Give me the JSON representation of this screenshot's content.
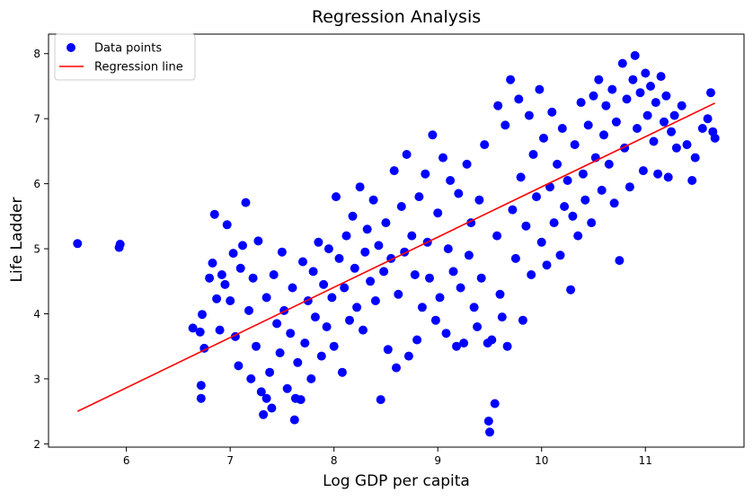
{
  "chart_data": {
    "type": "scatter",
    "title": "Regression Analysis",
    "xlabel": "Log GDP per capita",
    "ylabel": "Life Ladder",
    "xlim": [
      5.25,
      11.95
    ],
    "ylim": [
      1.95,
      8.3
    ],
    "xticks": [
      6,
      7,
      8,
      9,
      10,
      11
    ],
    "yticks": [
      2,
      3,
      4,
      5,
      6,
      7,
      8
    ],
    "grid": false,
    "legend_position": "top-left",
    "legend": [
      {
        "label": "Data points",
        "marker": "circle",
        "color": "#0000ff"
      },
      {
        "label": "Regression line",
        "marker": "line",
        "color": "#ff0000"
      }
    ],
    "series": [
      {
        "name": "Data points",
        "kind": "scatter",
        "color": "#0000ff",
        "points": [
          [
            5.53,
            5.08
          ],
          [
            5.93,
            5.02
          ],
          [
            5.94,
            5.07
          ],
          [
            6.64,
            3.78
          ],
          [
            6.71,
            3.72
          ],
          [
            6.72,
            2.7
          ],
          [
            6.72,
            2.9
          ],
          [
            6.73,
            3.99
          ],
          [
            6.75,
            3.47
          ],
          [
            6.8,
            4.55
          ],
          [
            6.83,
            4.78
          ],
          [
            6.85,
            5.53
          ],
          [
            6.87,
            4.23
          ],
          [
            6.9,
            3.75
          ],
          [
            6.92,
            4.6
          ],
          [
            6.95,
            4.45
          ],
          [
            6.97,
            5.37
          ],
          [
            7.0,
            4.2
          ],
          [
            7.03,
            4.93
          ],
          [
            7.05,
            3.65
          ],
          [
            7.08,
            3.2
          ],
          [
            7.1,
            4.7
          ],
          [
            7.12,
            5.05
          ],
          [
            7.15,
            5.71
          ],
          [
            7.18,
            4.05
          ],
          [
            7.2,
            3.0
          ],
          [
            7.22,
            4.55
          ],
          [
            7.25,
            3.5
          ],
          [
            7.27,
            5.12
          ],
          [
            7.3,
            2.8
          ],
          [
            7.32,
            2.45
          ],
          [
            7.35,
            2.7
          ],
          [
            7.35,
            4.25
          ],
          [
            7.38,
            3.1
          ],
          [
            7.4,
            2.55
          ],
          [
            7.42,
            4.6
          ],
          [
            7.45,
            3.85
          ],
          [
            7.48,
            3.4
          ],
          [
            7.5,
            4.95
          ],
          [
            7.52,
            4.05
          ],
          [
            7.55,
            2.85
          ],
          [
            7.58,
            3.7
          ],
          [
            7.6,
            4.4
          ],
          [
            7.62,
            2.37
          ],
          [
            7.63,
            2.7
          ],
          [
            7.65,
            3.25
          ],
          [
            7.68,
            2.68
          ],
          [
            7.7,
            4.8
          ],
          [
            7.72,
            3.55
          ],
          [
            7.75,
            4.2
          ],
          [
            7.78,
            3.0
          ],
          [
            7.8,
            4.65
          ],
          [
            7.82,
            3.95
          ],
          [
            7.85,
            5.1
          ],
          [
            7.88,
            3.35
          ],
          [
            7.9,
            4.45
          ],
          [
            7.93,
            3.8
          ],
          [
            7.95,
            5.0
          ],
          [
            7.98,
            4.25
          ],
          [
            8.0,
            3.5
          ],
          [
            8.02,
            5.8
          ],
          [
            8.05,
            4.85
          ],
          [
            8.08,
            3.1
          ],
          [
            8.1,
            4.4
          ],
          [
            8.12,
            5.2
          ],
          [
            8.15,
            3.9
          ],
          [
            8.18,
            5.5
          ],
          [
            8.2,
            4.7
          ],
          [
            8.22,
            4.1
          ],
          [
            8.25,
            5.95
          ],
          [
            8.28,
            3.75
          ],
          [
            8.3,
            4.95
          ],
          [
            8.32,
            5.3
          ],
          [
            8.35,
            4.5
          ],
          [
            8.38,
            5.75
          ],
          [
            8.4,
            4.2
          ],
          [
            8.43,
            5.05
          ],
          [
            8.45,
            2.68
          ],
          [
            8.48,
            4.65
          ],
          [
            8.5,
            5.4
          ],
          [
            8.52,
            3.45
          ],
          [
            8.55,
            4.85
          ],
          [
            8.58,
            6.2
          ],
          [
            8.6,
            3.17
          ],
          [
            8.62,
            4.3
          ],
          [
            8.65,
            5.65
          ],
          [
            8.68,
            4.95
          ],
          [
            8.7,
            6.45
          ],
          [
            8.72,
            3.35
          ],
          [
            8.75,
            5.2
          ],
          [
            8.78,
            4.6
          ],
          [
            8.8,
            3.6
          ],
          [
            8.82,
            5.8
          ],
          [
            8.85,
            4.1
          ],
          [
            8.88,
            6.15
          ],
          [
            8.9,
            5.1
          ],
          [
            8.92,
            4.55
          ],
          [
            8.95,
            6.75
          ],
          [
            8.98,
            3.9
          ],
          [
            9.0,
            5.55
          ],
          [
            9.02,
            4.25
          ],
          [
            9.05,
            6.4
          ],
          [
            9.08,
            3.7
          ],
          [
            9.1,
            5.0
          ],
          [
            9.12,
            6.05
          ],
          [
            9.15,
            4.65
          ],
          [
            9.18,
            3.5
          ],
          [
            9.2,
            5.85
          ],
          [
            9.22,
            4.4
          ],
          [
            9.25,
            3.55
          ],
          [
            9.28,
            6.3
          ],
          [
            9.3,
            4.9
          ],
          [
            9.32,
            5.4
          ],
          [
            9.35,
            4.1
          ],
          [
            9.38,
            3.8
          ],
          [
            9.4,
            5.75
          ],
          [
            9.42,
            4.55
          ],
          [
            9.45,
            6.6
          ],
          [
            9.48,
            3.55
          ],
          [
            9.49,
            2.35
          ],
          [
            9.5,
            2.18
          ],
          [
            9.52,
            3.6
          ],
          [
            9.55,
            2.62
          ],
          [
            9.57,
            5.2
          ],
          [
            9.58,
            7.2
          ],
          [
            9.6,
            4.3
          ],
          [
            9.62,
            3.95
          ],
          [
            9.65,
            6.9
          ],
          [
            9.67,
            3.5
          ],
          [
            9.7,
            7.6
          ],
          [
            9.72,
            5.6
          ],
          [
            9.75,
            4.85
          ],
          [
            9.78,
            7.3
          ],
          [
            9.8,
            6.1
          ],
          [
            9.82,
            3.9
          ],
          [
            9.85,
            5.35
          ],
          [
            9.88,
            7.05
          ],
          [
            9.9,
            4.6
          ],
          [
            9.92,
            6.45
          ],
          [
            9.95,
            5.8
          ],
          [
            9.98,
            7.45
          ],
          [
            10.0,
            5.1
          ],
          [
            10.02,
            6.7
          ],
          [
            10.05,
            4.75
          ],
          [
            10.08,
            5.95
          ],
          [
            10.1,
            7.1
          ],
          [
            10.12,
            5.4
          ],
          [
            10.15,
            6.3
          ],
          [
            10.18,
            4.9
          ],
          [
            10.2,
            6.85
          ],
          [
            10.22,
            5.65
          ],
          [
            10.25,
            6.05
          ],
          [
            10.28,
            4.37
          ],
          [
            10.3,
            5.5
          ],
          [
            10.32,
            6.6
          ],
          [
            10.35,
            5.2
          ],
          [
            10.38,
            7.25
          ],
          [
            10.4,
            6.15
          ],
          [
            10.42,
            5.75
          ],
          [
            10.45,
            6.9
          ],
          [
            10.48,
            5.4
          ],
          [
            10.5,
            7.35
          ],
          [
            10.52,
            6.4
          ],
          [
            10.55,
            7.6
          ],
          [
            10.58,
            5.9
          ],
          [
            10.6,
            6.75
          ],
          [
            10.62,
            7.2
          ],
          [
            10.65,
            6.3
          ],
          [
            10.68,
            7.45
          ],
          [
            10.7,
            5.7
          ],
          [
            10.72,
            6.95
          ],
          [
            10.75,
            4.82
          ],
          [
            10.78,
            7.85
          ],
          [
            10.8,
            6.55
          ],
          [
            10.82,
            7.3
          ],
          [
            10.85,
            5.95
          ],
          [
            10.88,
            7.6
          ],
          [
            10.9,
            7.97
          ],
          [
            10.92,
            6.85
          ],
          [
            10.95,
            7.4
          ],
          [
            10.98,
            6.2
          ],
          [
            11.0,
            7.7
          ],
          [
            11.02,
            7.05
          ],
          [
            11.05,
            7.5
          ],
          [
            11.08,
            6.65
          ],
          [
            11.1,
            7.25
          ],
          [
            11.12,
            6.15
          ],
          [
            11.15,
            7.65
          ],
          [
            11.18,
            6.95
          ],
          [
            11.2,
            7.35
          ],
          [
            11.22,
            6.1
          ],
          [
            11.25,
            6.8
          ],
          [
            11.28,
            7.05
          ],
          [
            11.3,
            6.55
          ],
          [
            11.35,
            7.2
          ],
          [
            11.4,
            6.6
          ],
          [
            11.45,
            6.05
          ],
          [
            11.48,
            6.4
          ],
          [
            11.55,
            6.85
          ],
          [
            11.6,
            7.0
          ],
          [
            11.63,
            7.4
          ],
          [
            11.65,
            6.8
          ],
          [
            11.67,
            6.7
          ]
        ]
      },
      {
        "name": "Regression line",
        "kind": "line",
        "color": "#ff0000",
        "points": [
          [
            5.53,
            2.5
          ],
          [
            11.67,
            7.24
          ]
        ]
      }
    ]
  }
}
